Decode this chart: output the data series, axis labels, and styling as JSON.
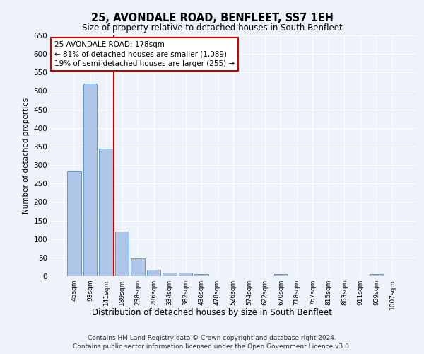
{
  "title": "25, AVONDALE ROAD, BENFLEET, SS7 1EH",
  "subtitle": "Size of property relative to detached houses in South Benfleet",
  "xlabel": "Distribution of detached houses by size in South Benfleet",
  "ylabel": "Number of detached properties",
  "footer_line1": "Contains HM Land Registry data © Crown copyright and database right 2024.",
  "footer_line2": "Contains public sector information licensed under the Open Government Licence v3.0.",
  "bar_labels": [
    "45sqm",
    "93sqm",
    "141sqm",
    "189sqm",
    "238sqm",
    "286sqm",
    "334sqm",
    "382sqm",
    "430sqm",
    "478sqm",
    "526sqm",
    "574sqm",
    "622sqm",
    "670sqm",
    "718sqm",
    "767sqm",
    "815sqm",
    "863sqm",
    "911sqm",
    "959sqm",
    "1007sqm"
  ],
  "bar_values": [
    283,
    520,
    345,
    120,
    48,
    17,
    10,
    10,
    6,
    0,
    0,
    0,
    0,
    6,
    0,
    0,
    0,
    0,
    0,
    6,
    0
  ],
  "bar_color": "#aec6e8",
  "bar_edge_color": "#5b9bd5",
  "vline_x_index": 2.5,
  "annotation_text": "25 AVONDALE ROAD: 178sqm\n← 81% of detached houses are smaller (1,089)\n19% of semi-detached houses are larger (255) →",
  "ylim": [
    0,
    650
  ],
  "yticks": [
    0,
    50,
    100,
    150,
    200,
    250,
    300,
    350,
    400,
    450,
    500,
    550,
    600,
    650
  ],
  "vline_color": "#cc0000",
  "annotation_box_color": "#cc0000",
  "background_color": "#eef2fa",
  "grid_color": "#ffffff"
}
